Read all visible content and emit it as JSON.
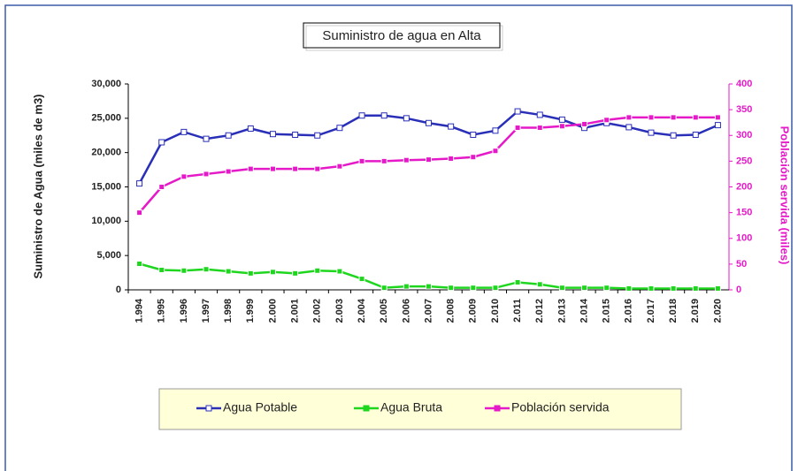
{
  "chart_data": {
    "type": "line",
    "title": "Suministro de agua en Alta",
    "y_label": "Suministro de Agua (miles de m3)",
    "y2_label": "Población servida (miles)",
    "categories": [
      "1.994",
      "1.995",
      "1.996",
      "1.997",
      "1.998",
      "1.999",
      "2.000",
      "2.001",
      "2.002",
      "2.003",
      "2.004",
      "2.005",
      "2.006",
      "2.007",
      "2.008",
      "2.009",
      "2.010",
      "2.011",
      "2.012",
      "2.013",
      "2.014",
      "2.015",
      "2.016",
      "2.017",
      "2.018",
      "2.019",
      "2.020"
    ],
    "ylim": [
      0,
      30000
    ],
    "yticks": [
      0,
      {
        "value": 5000,
        "label": "5,000"
      },
      {
        "value": 10000,
        "label": "10,000"
      },
      {
        "value": 15000,
        "label": "15,000"
      },
      {
        "value": 20000,
        "label": "20,000"
      },
      {
        "value": 25000,
        "label": "25,000"
      },
      {
        "value": 30000,
        "label": "30,000"
      }
    ],
    "y2lim": [
      0,
      400
    ],
    "y2ticks": [
      0,
      50,
      100,
      150,
      200,
      250,
      300,
      350,
      400
    ],
    "series": [
      {
        "name": "Agua Potable",
        "color": "#2a2fb8",
        "values": [
          15500,
          21500,
          23000,
          22000,
          22500,
          23500,
          22700,
          22600,
          22500,
          23600,
          25400,
          25400,
          25000,
          24300,
          23800,
          22600,
          23200,
          26000,
          25500,
          24800,
          23600,
          24300,
          23700,
          22900,
          22500,
          22600,
          24000
        ]
      },
      {
        "name": "Agua Bruta",
        "color": "#1fd61f",
        "values": [
          3800,
          2900,
          2800,
          3000,
          2700,
          2400,
          2600,
          2400,
          2800,
          2700,
          1600,
          300,
          500,
          500,
          300,
          300,
          300,
          1100,
          800,
          300,
          300,
          300,
          200,
          200,
          200,
          200,
          200
        ]
      },
      {
        "name": "Población servida",
        "color": "#e619c8",
        "axis": "y2",
        "values": [
          150,
          200,
          220,
          225,
          230,
          235,
          235,
          235,
          235,
          240,
          250,
          250,
          252,
          253,
          255,
          258,
          270,
          315,
          315,
          318,
          322,
          330,
          335,
          335,
          335,
          335,
          335
        ]
      }
    ]
  }
}
